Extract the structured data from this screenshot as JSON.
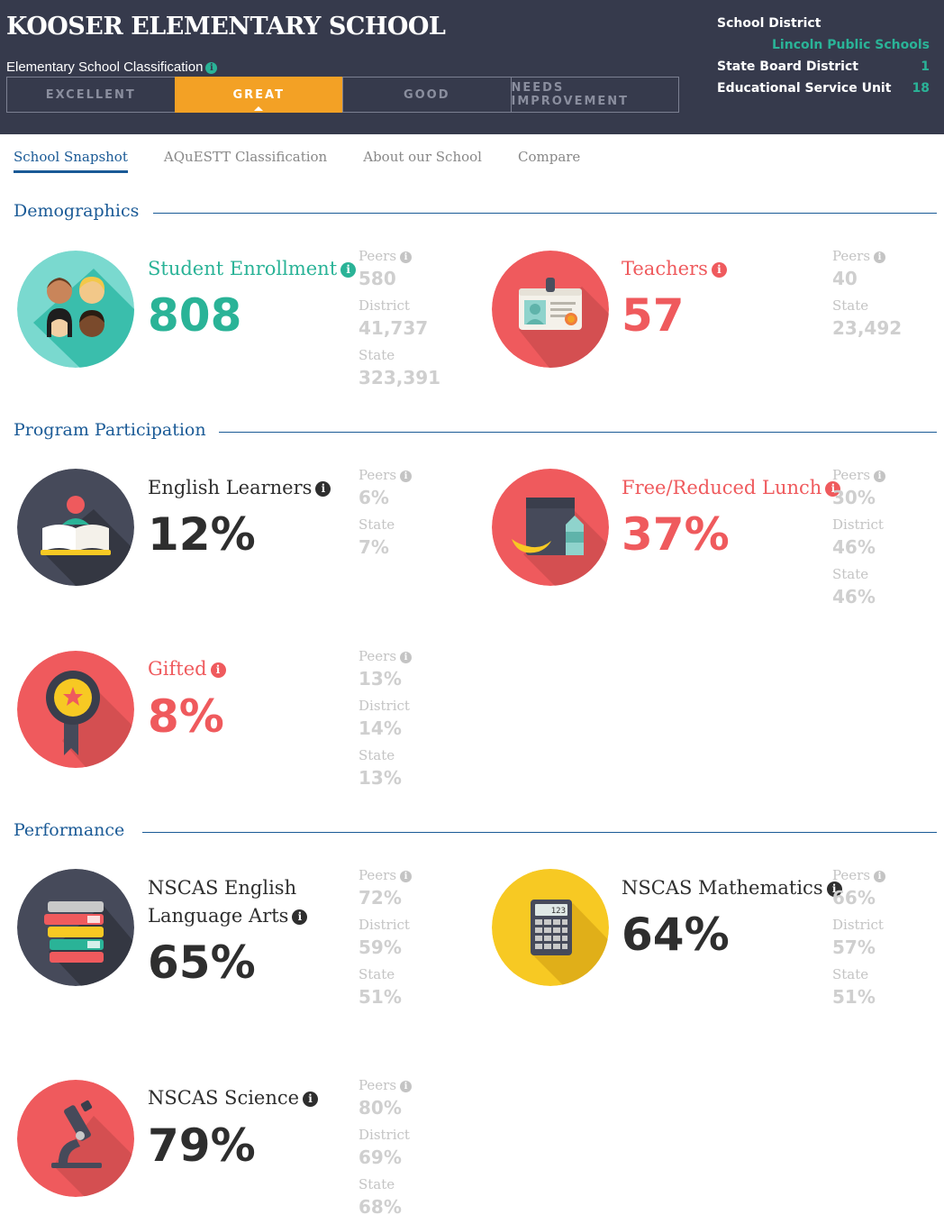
{
  "header": {
    "school_name": "KOOSER ELEMENTARY SCHOOL",
    "classification_label": "Elementary School Classification",
    "classification_tabs": [
      "EXCELLENT",
      "GREAT",
      "GOOD",
      "NEEDS IMPROVEMENT"
    ],
    "active_classification": "GREAT",
    "district_label": "School District",
    "district_value": "Lincoln Public Schools",
    "board_label": "State Board District",
    "board_value": "1",
    "esu_label": "Educational Service Unit",
    "esu_value": "18"
  },
  "nav": {
    "tabs": [
      "School Snapshot",
      "AQuESTT Classification",
      "About our School",
      "Compare"
    ],
    "active": "School Snapshot"
  },
  "sections": {
    "demographics": "Demographics",
    "program": "Program Participation",
    "performance": "Performance"
  },
  "info_glyph": "i",
  "metrics": {
    "enrollment": {
      "label": "Student Enrollment",
      "value": "808",
      "color": "#2ab397",
      "icon": "students-icon",
      "comparisons": [
        {
          "label": "Peers",
          "value": "580"
        },
        {
          "label": "District",
          "value": "41,737"
        },
        {
          "label": "State",
          "value": "323,391"
        }
      ]
    },
    "teachers": {
      "label": "Teachers",
      "value": "57",
      "color": "#ef5a5d",
      "icon": "id-badge-icon",
      "comparisons": [
        {
          "label": "Peers",
          "value": "40"
        },
        {
          "label": "State",
          "value": "23,492"
        }
      ]
    },
    "english_learners": {
      "label": "English Learners",
      "value": "12%",
      "color": "#2e2e2e",
      "icon": "reader-book-icon",
      "comparisons": [
        {
          "label": "Peers",
          "value": "6%"
        },
        {
          "label": "State",
          "value": "7%"
        }
      ]
    },
    "free_lunch": {
      "label": "Free/Reduced Lunch",
      "value": "37%",
      "color": "#ef5a5d",
      "icon": "lunch-bag-icon",
      "comparisons": [
        {
          "label": "Peers",
          "value": "30%"
        },
        {
          "label": "District",
          "value": "46%"
        },
        {
          "label": "State",
          "value": "46%"
        }
      ]
    },
    "gifted": {
      "label": "Gifted",
      "value": "8%",
      "color": "#ef5a5d",
      "icon": "award-ribbon-icon",
      "comparisons": [
        {
          "label": "Peers",
          "value": "13%"
        },
        {
          "label": "District",
          "value": "14%"
        },
        {
          "label": "State",
          "value": "13%"
        }
      ]
    },
    "ela": {
      "label_line1": "NSCAS English",
      "label_line2": "Language Arts",
      "value": "65%",
      "color": "#2e2e2e",
      "icon": "books-stack-icon",
      "comparisons": [
        {
          "label": "Peers",
          "value": "72%"
        },
        {
          "label": "District",
          "value": "59%"
        },
        {
          "label": "State",
          "value": "51%"
        }
      ]
    },
    "math": {
      "label": "NSCAS Mathematics",
      "value": "64%",
      "color": "#2e2e2e",
      "icon": "calculator-icon",
      "calc_display": "123",
      "comparisons": [
        {
          "label": "Peers",
          "value": "66%"
        },
        {
          "label": "District",
          "value": "57%"
        },
        {
          "label": "State",
          "value": "51%"
        }
      ]
    },
    "science": {
      "label": "NSCAS Science",
      "value": "79%",
      "color": "#2e2e2e",
      "icon": "microscope-icon",
      "comparisons": [
        {
          "label": "Peers",
          "value": "80%"
        },
        {
          "label": "District",
          "value": "69%"
        },
        {
          "label": "State",
          "value": "68%"
        }
      ]
    }
  },
  "colors": {
    "header_bg": "#363a4c",
    "accent_orange": "#f3a125",
    "accent_teal": "#2ab397",
    "accent_red": "#ef5a5d",
    "accent_blue": "#1a5a96",
    "accent_yellow": "#f7c923"
  }
}
